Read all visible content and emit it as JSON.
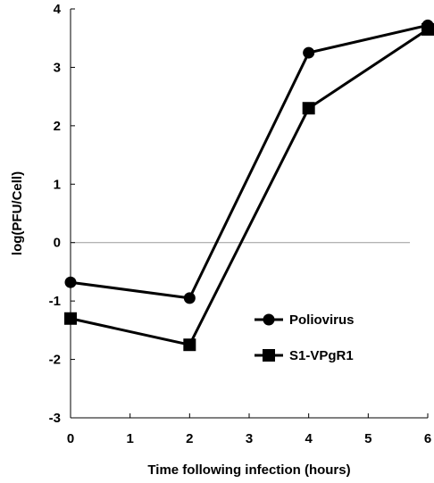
{
  "chart_data": {
    "type": "line",
    "xlabel": "Time following infection (hours)",
    "ylabel": "log(PFU/Cell)",
    "xlim": [
      0,
      6
    ],
    "ylim": [
      -3,
      4
    ],
    "xticks": [
      "0",
      "1",
      "2",
      "3",
      "4",
      "5",
      "6"
    ],
    "yticks": [
      "-3",
      "-2",
      "-1",
      "0",
      "1",
      "2",
      "3",
      "4"
    ],
    "grid": false,
    "zero_line": true,
    "legend_position": "lower-right",
    "series": [
      {
        "name": "Poliovirus",
        "marker": "circle",
        "color": "#000000",
        "x": [
          0,
          2,
          4,
          6
        ],
        "y": [
          -0.68,
          -0.95,
          3.25,
          3.72
        ]
      },
      {
        "name": "S1-VPgR1",
        "marker": "square",
        "color": "#000000",
        "x": [
          0,
          2,
          4,
          6
        ],
        "y": [
          -1.3,
          -1.75,
          2.3,
          3.65
        ]
      }
    ]
  }
}
